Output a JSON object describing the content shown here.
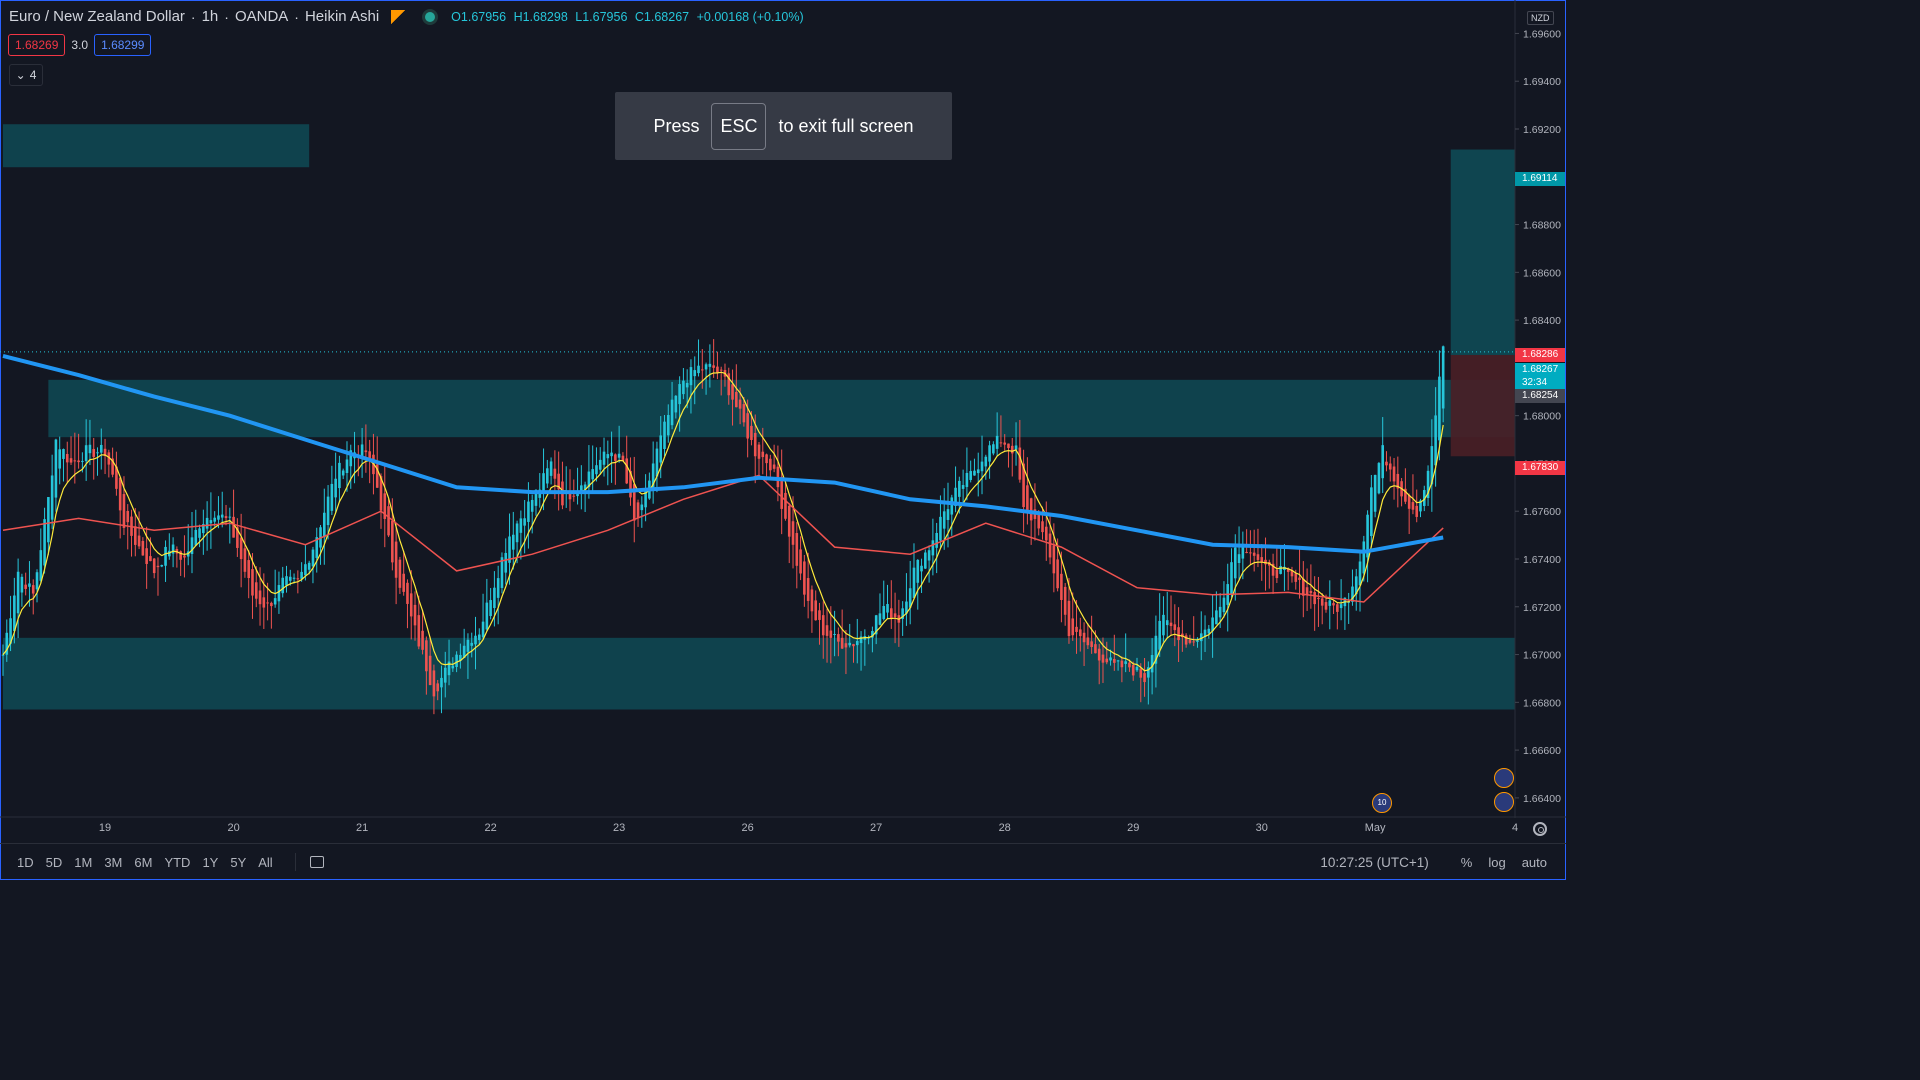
{
  "header": {
    "symbol": "Euro / New Zealand Dollar",
    "interval": "1h",
    "source": "OANDA",
    "chart_style": "Heikin Ashi",
    "ohlc": {
      "o": "O1.67956",
      "h": "H1.68298",
      "l": "L1.67956",
      "c": "C1.68267",
      "chg": "+0.00168 (+0.10%)"
    }
  },
  "quotes": {
    "bid": "1.68269",
    "spread": "3.0",
    "ask": "1.68299"
  },
  "indicators_collapsed": {
    "count": "4"
  },
  "toast": {
    "press": "Press",
    "key": "ESC",
    "rest": "to exit full screen"
  },
  "currency": "NZD",
  "price_badges": {
    "upper": "1.69114",
    "red": "1.68286",
    "current": "1.68267",
    "countdown": "32:34",
    "gray": "1.68254",
    "lower": "1.67830"
  },
  "event_count": "10",
  "bottom": {
    "ranges": [
      "1D",
      "5D",
      "1M",
      "3M",
      "6M",
      "YTD",
      "1Y",
      "5Y",
      "All"
    ],
    "clock": "10:27:25 (UTC+1)",
    "percent": "%",
    "log": "log",
    "auto": "auto"
  },
  "colors": {
    "background": "#131722",
    "up": "#26c6da",
    "down": "#ef5350",
    "zone": "#0f4a55",
    "sma200": "#2196f3",
    "ema50": "#ef5350",
    "ema8": "#ffeb3b"
  },
  "chart_data": {
    "type": "candlestick",
    "ylim": [
      1.6632,
      1.6974
    ],
    "y_ticks": [
      "1.69600",
      "1.69400",
      "1.69200",
      "1.69000",
      "1.68800",
      "1.68600",
      "1.68400",
      "1.68200",
      "1.68000",
      "1.67800",
      "1.67600",
      "1.67400",
      "1.67200",
      "1.67000",
      "1.66800",
      "1.66600",
      "1.66400"
    ],
    "x_ticks": [
      {
        "label": "19",
        "i": 27
      },
      {
        "label": "20",
        "i": 61
      },
      {
        "label": "21",
        "i": 95
      },
      {
        "label": "22",
        "i": 129
      },
      {
        "label": "23",
        "i": 163
      },
      {
        "label": "26",
        "i": 197
      },
      {
        "label": "27",
        "i": 231
      },
      {
        "label": "28",
        "i": 265
      },
      {
        "label": "29",
        "i": 299
      },
      {
        "label": "30",
        "i": 333
      },
      {
        "label": "May",
        "i": 363
      },
      {
        "label": "4",
        "i": 400
      }
    ],
    "close_path": [
      [
        0,
        1.67
      ],
      [
        4,
        1.6735
      ],
      [
        8,
        1.6725
      ],
      [
        12,
        1.6765
      ],
      [
        14,
        1.679
      ],
      [
        18,
        1.678
      ],
      [
        22,
        1.6785
      ],
      [
        27,
        1.6785
      ],
      [
        29,
        1.6775
      ],
      [
        32,
        1.6755
      ],
      [
        36,
        1.6745
      ],
      [
        40,
        1.6735
      ],
      [
        44,
        1.6745
      ],
      [
        48,
        1.674
      ],
      [
        52,
        1.6755
      ],
      [
        56,
        1.676
      ],
      [
        60,
        1.6755
      ],
      [
        62,
        1.6745
      ],
      [
        66,
        1.6725
      ],
      [
        70,
        1.672
      ],
      [
        74,
        1.673
      ],
      [
        78,
        1.673
      ],
      [
        82,
        1.6745
      ],
      [
        85,
        1.676
      ],
      [
        88,
        1.6775
      ],
      [
        92,
        1.6785
      ],
      [
        96,
        1.6785
      ],
      [
        99,
        1.677
      ],
      [
        103,
        1.674
      ],
      [
        107,
        1.672
      ],
      [
        111,
        1.67
      ],
      [
        114,
        1.6685
      ],
      [
        118,
        1.6695
      ],
      [
        122,
        1.6705
      ],
      [
        126,
        1.671
      ],
      [
        130,
        1.673
      ],
      [
        134,
        1.675
      ],
      [
        138,
        1.676
      ],
      [
        142,
        1.677
      ],
      [
        145,
        1.678
      ],
      [
        148,
        1.6765
      ],
      [
        152,
        1.677
      ],
      [
        157,
        1.678
      ],
      [
        161,
        1.6785
      ],
      [
        164,
        1.678
      ],
      [
        167,
        1.6755
      ],
      [
        169,
        1.676
      ],
      [
        172,
        1.678
      ],
      [
        176,
        1.68
      ],
      [
        180,
        1.6815
      ],
      [
        184,
        1.682
      ],
      [
        188,
        1.682
      ],
      [
        191,
        1.6815
      ],
      [
        195,
        1.68
      ],
      [
        199,
        1.6785
      ],
      [
        203,
        1.678
      ],
      [
        205,
        1.677
      ],
      [
        209,
        1.6745
      ],
      [
        213,
        1.672
      ],
      [
        217,
        1.671
      ],
      [
        221,
        1.6705
      ],
      [
        225,
        1.6705
      ],
      [
        229,
        1.671
      ],
      [
        233,
        1.672
      ],
      [
        237,
        1.6715
      ],
      [
        241,
        1.6735
      ],
      [
        245,
        1.6745
      ],
      [
        249,
        1.676
      ],
      [
        253,
        1.677
      ],
      [
        256,
        1.6775
      ],
      [
        260,
        1.6785
      ],
      [
        264,
        1.679
      ],
      [
        268,
        1.6785
      ],
      [
        270,
        1.676
      ],
      [
        274,
        1.6755
      ],
      [
        278,
        1.6735
      ],
      [
        282,
        1.671
      ],
      [
        286,
        1.6705
      ],
      [
        290,
        1.67
      ],
      [
        294,
        1.6695
      ],
      [
        298,
        1.6695
      ],
      [
        302,
        1.669
      ],
      [
        306,
        1.6715
      ],
      [
        310,
        1.671
      ],
      [
        314,
        1.6705
      ],
      [
        318,
        1.671
      ],
      [
        322,
        1.672
      ],
      [
        326,
        1.6745
      ],
      [
        330,
        1.6745
      ],
      [
        334,
        1.6735
      ],
      [
        338,
        1.6735
      ],
      [
        342,
        1.673
      ],
      [
        346,
        1.6725
      ],
      [
        350,
        1.672
      ],
      [
        354,
        1.672
      ],
      [
        356,
        1.6725
      ],
      [
        359,
        1.674
      ],
      [
        362,
        1.677
      ],
      [
        365,
        1.6785
      ],
      [
        368,
        1.6775
      ],
      [
        371,
        1.6765
      ],
      [
        374,
        1.676
      ],
      [
        377,
        1.6775
      ],
      [
        379,
        1.68
      ],
      [
        381,
        1.6828
      ]
    ],
    "sma200": [
      [
        0,
        1.6825
      ],
      [
        20,
        1.6817
      ],
      [
        40,
        1.6808
      ],
      [
        60,
        1.68
      ],
      [
        80,
        1.679
      ],
      [
        100,
        1.678
      ],
      [
        120,
        1.677
      ],
      [
        140,
        1.6768
      ],
      [
        160,
        1.6768
      ],
      [
        180,
        1.677
      ],
      [
        200,
        1.6774
      ],
      [
        220,
        1.6772
      ],
      [
        240,
        1.6765
      ],
      [
        260,
        1.6762
      ],
      [
        280,
        1.6758
      ],
      [
        300,
        1.6752
      ],
      [
        320,
        1.6746
      ],
      [
        340,
        1.6745
      ],
      [
        360,
        1.6743
      ],
      [
        381,
        1.6749
      ]
    ],
    "ema50": [
      [
        0,
        1.6752
      ],
      [
        20,
        1.6757
      ],
      [
        40,
        1.6752
      ],
      [
        60,
        1.6755
      ],
      [
        80,
        1.6746
      ],
      [
        100,
        1.676
      ],
      [
        120,
        1.6735
      ],
      [
        140,
        1.6742
      ],
      [
        160,
        1.6752
      ],
      [
        180,
        1.6765
      ],
      [
        200,
        1.6775
      ],
      [
        220,
        1.6745
      ],
      [
        240,
        1.6742
      ],
      [
        260,
        1.6755
      ],
      [
        280,
        1.6745
      ],
      [
        300,
        1.6728
      ],
      [
        320,
        1.6725
      ],
      [
        340,
        1.6726
      ],
      [
        360,
        1.6722
      ],
      [
        381,
        1.6753
      ]
    ],
    "zones": [
      {
        "x0": 0,
        "x1": 81,
        "y0": 1.6904,
        "y1": 1.6922
      },
      {
        "x0": 12,
        "x1": 400,
        "y0": 1.6791,
        "y1": 1.6815
      },
      {
        "x0": 0,
        "x1": 400,
        "y0": 1.6677,
        "y1": 1.6707
      }
    ],
    "position": {
      "x0": 383,
      "x1": 400,
      "entry": 1.68254,
      "target": 1.69114,
      "stop": 1.6783
    },
    "last_price": 1.68267
  }
}
